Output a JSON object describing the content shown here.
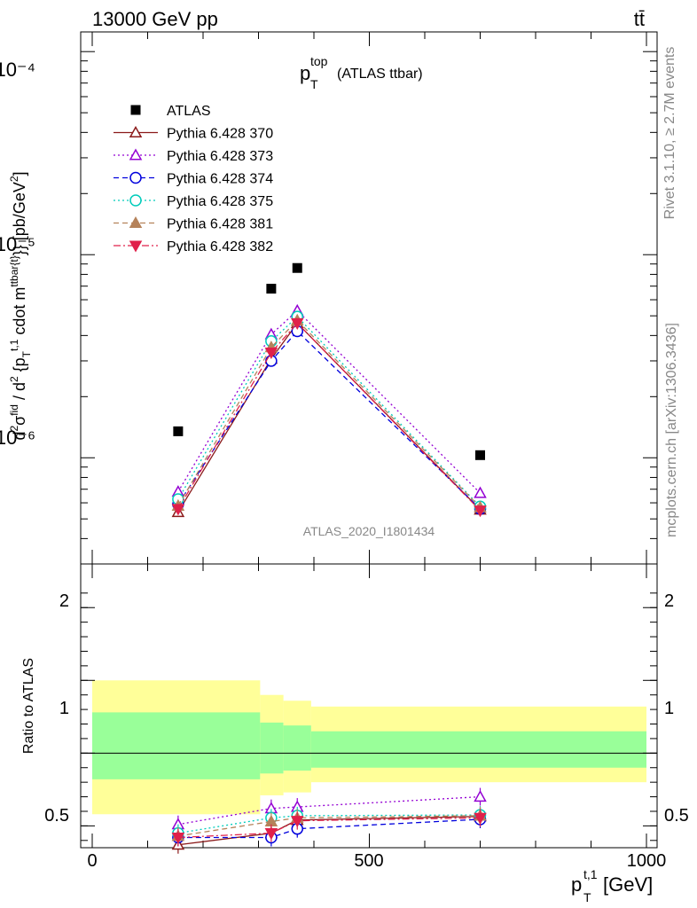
{
  "header": {
    "left": "13000 GeV pp",
    "right": "tt̄"
  },
  "side_labels": {
    "rivet": "Rivet 3.1.10, ≥ 2.7M events",
    "mcplots": "mcplots.cern.ch [arXiv:1306.3436]"
  },
  "plot_title": {
    "main": "p",
    "sup": "top",
    "sub": "T",
    "rest": "(ATLAS ttbar)"
  },
  "watermark": "ATLAS_2020_I1801434",
  "ylabel_main": "d²σᶠⁱᵈ / d² {pT t,1 cdot m ttbar{t}}} [pb/GeV²]",
  "ylabel_ratio": "Ratio to ATLAS",
  "xlabel": "p_T^{t,1} [GeV]",
  "colors": {
    "ATLAS": "#000000",
    "370": "#8b1a1a",
    "373": "#9400d3",
    "374": "#0000dd",
    "375": "#00ccbb",
    "381": "#b5825a",
    "382": "#e0204a",
    "band_outer": "#ffff99",
    "band_inner": "#99ff99"
  },
  "chart_data": {
    "type": "scatter",
    "x": [
      155,
      323,
      370,
      700
    ],
    "xlim": [
      -20,
      1020
    ],
    "main_ylim": [
      3e-07,
      0.000125
    ],
    "main_yscale": "log",
    "main_yticks": [
      "10⁻⁶",
      "10⁻⁵",
      "10⁻⁴"
    ],
    "ratio_ylim": [
      0.35,
      2.3
    ],
    "ratio_yticks": [
      "0.5",
      "1",
      "2"
    ],
    "xticks": [
      "0",
      "500",
      "1000"
    ],
    "legend_position": "top-left",
    "series": [
      {
        "name": "ATLAS",
        "key": "ATLAS",
        "marker": "square",
        "values": [
          1.35e-06,
          6.8e-06,
          8.6e-06,
          1.03e-06
        ],
        "ratio": [
          1,
          1,
          1,
          1
        ]
      },
      {
        "name": "Pythia 6.428 370",
        "key": "370",
        "marker": "tri-up-open",
        "line": "solid",
        "values": [
          5.4e-07,
          3.07e-06,
          4.6e-06,
          5.55e-07
        ],
        "ratio": [
          0.37,
          0.45,
          0.54,
          0.565
        ]
      },
      {
        "name": "Pythia 6.428 373",
        "key": "373",
        "marker": "tri-up-open",
        "line": "dotted",
        "values": [
          6.8e-07,
          4.05e-06,
          5.3e-06,
          6.7e-07
        ],
        "ratio": [
          0.51,
          0.62,
          0.63,
          0.7
        ]
      },
      {
        "name": "Pythia 6.428 374",
        "key": "374",
        "marker": "circle-open",
        "line": "dashed",
        "values": [
          5.9e-07,
          3e-06,
          4.2e-06,
          5.6e-07
        ],
        "ratio": [
          0.42,
          0.42,
          0.48,
          0.545
        ]
      },
      {
        "name": "Pythia 6.428 375",
        "key": "375",
        "marker": "circle-open",
        "line": "dotted",
        "values": [
          6.25e-07,
          3.75e-06,
          4.95e-06,
          5.75e-07
        ],
        "ratio": [
          0.45,
          0.555,
          0.57,
          0.575
        ]
      },
      {
        "name": "Pythia 6.428 381",
        "key": "381",
        "marker": "tri-up-filled",
        "line": "dashed",
        "values": [
          5.8e-07,
          3.5e-06,
          4.75e-06,
          5.7e-07
        ],
        "ratio": [
          0.43,
          0.53,
          0.555,
          0.57
        ]
      },
      {
        "name": "Pythia 6.428 382",
        "key": "382",
        "marker": "tri-down-filled",
        "line": "dashdot",
        "values": [
          5.6e-07,
          3.3e-06,
          4.6e-06,
          5.5e-07
        ],
        "ratio": [
          0.42,
          0.45,
          0.535,
          0.555
        ]
      }
    ],
    "ratio_bands": [
      {
        "x0": 0,
        "x1": 303,
        "outer": [
          0.58,
          1.5
        ],
        "inner": [
          0.82,
          1.28
        ]
      },
      {
        "x0": 303,
        "x1": 345,
        "outer": [
          0.71,
          1.4
        ],
        "inner": [
          0.86,
          1.21
        ]
      },
      {
        "x0": 345,
        "x1": 395,
        "outer": [
          0.73,
          1.36
        ],
        "inner": [
          0.88,
          1.19
        ]
      },
      {
        "x0": 395,
        "x1": 1000,
        "outer": [
          0.8,
          1.32
        ],
        "inner": [
          0.9,
          1.15
        ]
      }
    ]
  }
}
